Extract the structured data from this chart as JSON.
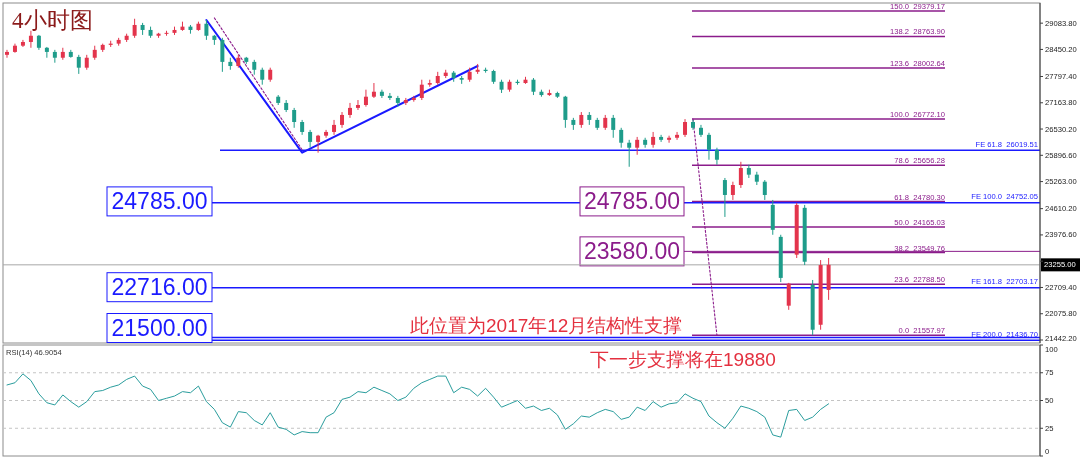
{
  "chart_data": [
    {
      "type": "candlestick",
      "title": "4小时图",
      "categories": [
        null,
        null,
        null,
        null,
        null,
        null,
        null,
        null,
        null,
        null,
        null,
        null,
        null,
        null,
        null,
        null,
        null,
        null,
        null,
        null,
        null,
        null,
        null,
        null,
        null,
        null,
        null,
        null,
        null,
        null,
        null,
        null,
        null,
        null,
        null,
        null,
        null,
        null,
        null,
        null,
        null,
        null,
        null,
        null,
        null,
        null,
        null,
        null,
        null,
        null,
        null,
        null,
        null,
        null,
        null,
        null,
        null,
        null,
        null,
        null,
        null,
        null,
        null,
        null,
        null,
        null,
        null,
        null,
        null,
        null,
        null,
        null,
        null,
        null,
        null,
        null,
        null,
        null,
        null,
        null,
        null,
        null,
        null,
        null,
        null,
        null,
        null,
        null,
        null,
        null,
        null,
        null,
        null,
        null,
        null,
        null,
        null,
        null,
        null,
        null,
        null,
        null,
        null,
        null,
        null,
        null,
        null,
        null,
        null,
        null,
        null,
        null,
        null,
        null,
        null,
        null,
        null,
        null,
        null,
        null,
        null,
        null,
        null,
        null,
        null,
        null,
        null,
        null,
        null,
        null
      ],
      "ohlc": [
        [
          28320,
          28440,
          28250,
          28390
        ],
        [
          28390,
          28590,
          28370,
          28540
        ],
        [
          28540,
          28680,
          28510,
          28630
        ],
        [
          28630,
          28900,
          28490,
          28780
        ],
        [
          28780,
          28800,
          28440,
          28490
        ],
        [
          28490,
          28510,
          28250,
          28390
        ],
        [
          28390,
          28440,
          28130,
          28250
        ],
        [
          28250,
          28490,
          28200,
          28390
        ],
        [
          28390,
          28440,
          28250,
          28270
        ],
        [
          28270,
          28320,
          27860,
          28010
        ],
        [
          28010,
          28320,
          27960,
          28250
        ],
        [
          28250,
          28540,
          28200,
          28440
        ],
        [
          28440,
          28590,
          28390,
          28560
        ],
        [
          28560,
          28660,
          28510,
          28590
        ],
        [
          28590,
          28730,
          28540,
          28680
        ],
        [
          28680,
          28830,
          28630,
          28780
        ],
        [
          28780,
          29190,
          28730,
          29040
        ],
        [
          29040,
          29090,
          28800,
          28920
        ],
        [
          28920,
          29000,
          28730,
          28780
        ],
        [
          28780,
          28850,
          28730,
          28830
        ],
        [
          28830,
          28900,
          28780,
          28850
        ],
        [
          28850,
          29000,
          28800,
          28920
        ],
        [
          28920,
          29120,
          28900,
          29000
        ],
        [
          29000,
          29040,
          28830,
          28920
        ],
        [
          28920,
          29120,
          28900,
          29070
        ],
        [
          29070,
          29160,
          28680,
          28780
        ],
        [
          28780,
          28800,
          28560,
          28680
        ],
        [
          28680,
          28730,
          27910,
          28150
        ],
        [
          28150,
          28250,
          27960,
          28050
        ],
        [
          28050,
          28320,
          28010,
          28250
        ],
        [
          28250,
          28270,
          28100,
          28150
        ],
        [
          28150,
          28200,
          27840,
          27960
        ],
        [
          27960,
          28010,
          27600,
          27720
        ],
        [
          27720,
          28010,
          27670,
          27960
        ],
        [
          27310,
          27350,
          27110,
          27160
        ],
        [
          27160,
          27230,
          26940,
          26990
        ],
        [
          26990,
          27040,
          26560,
          26700
        ],
        [
          26700,
          26750,
          26390,
          26460
        ],
        [
          26460,
          26510,
          26080,
          26220
        ],
        [
          26220,
          26390,
          25960,
          26370
        ],
        [
          26370,
          26510,
          26320,
          26460
        ],
        [
          26460,
          26750,
          26390,
          26630
        ],
        [
          26630,
          26940,
          26560,
          26870
        ],
        [
          26870,
          27160,
          26800,
          27040
        ],
        [
          27040,
          27230,
          26990,
          27110
        ],
        [
          27110,
          27480,
          27070,
          27310
        ],
        [
          27310,
          27640,
          27280,
          27430
        ],
        [
          27430,
          27480,
          27280,
          27330
        ],
        [
          27330,
          27400,
          27230,
          27280
        ],
        [
          27280,
          27330,
          27070,
          27160
        ],
        [
          27160,
          27280,
          27110,
          27230
        ],
        [
          27230,
          27330,
          27190,
          27280
        ],
        [
          27280,
          27720,
          27230,
          27600
        ],
        [
          27600,
          27720,
          27550,
          27640
        ],
        [
          27640,
          27910,
          27600,
          27810
        ],
        [
          27810,
          27960,
          27760,
          27890
        ],
        [
          27890,
          27930,
          27670,
          27760
        ],
        [
          27760,
          27810,
          27620,
          27720
        ],
        [
          27720,
          28010,
          27670,
          27910
        ],
        [
          27910,
          28100,
          27860,
          27960
        ],
        [
          27960,
          28010,
          27890,
          27930
        ],
        [
          27930,
          27960,
          27620,
          27670
        ],
        [
          27670,
          27720,
          27400,
          27480
        ],
        [
          27480,
          27720,
          27430,
          27670
        ],
        [
          27670,
          27720,
          27600,
          27640
        ],
        [
          27640,
          27790,
          27620,
          27720
        ],
        [
          27720,
          27760,
          27350,
          27430
        ],
        [
          27430,
          27480,
          27310,
          27350
        ],
        [
          27350,
          27480,
          27330,
          27400
        ],
        [
          27400,
          27430,
          27280,
          27310
        ],
        [
          27310,
          27330,
          26560,
          26750
        ],
        [
          26750,
          26800,
          26510,
          26630
        ],
        [
          26630,
          26940,
          26560,
          26870
        ],
        [
          26870,
          26940,
          26630,
          26750
        ],
        [
          26750,
          26800,
          26510,
          26560
        ],
        [
          26560,
          26870,
          26510,
          26800
        ],
        [
          26800,
          26870,
          26320,
          26510
        ],
        [
          26510,
          26560,
          26080,
          26200
        ],
        [
          26200,
          26270,
          25620,
          26080
        ],
        [
          26080,
          26340,
          25910,
          26270
        ],
        [
          26270,
          26320,
          26080,
          26150
        ],
        [
          26150,
          26460,
          26080,
          26340
        ],
        [
          26340,
          26390,
          26220,
          26270
        ],
        [
          26270,
          26370,
          26200,
          26320
        ],
        [
          26320,
          26460,
          26270,
          26390
        ],
        [
          26390,
          26770,
          26340,
          26700
        ],
        [
          26700,
          26750,
          26510,
          26560
        ],
        [
          26560,
          26630,
          26340,
          26390
        ],
        [
          26390,
          26440,
          25790,
          26030
        ],
        [
          26030,
          26080,
          25670,
          25790
        ],
        [
          25300,
          25350,
          24410,
          24940
        ],
        [
          24940,
          25260,
          24820,
          25180
        ],
        [
          25180,
          25740,
          25110,
          25590
        ],
        [
          25590,
          25670,
          25350,
          25430
        ],
        [
          25430,
          25500,
          25180,
          25260
        ],
        [
          25260,
          25300,
          24820,
          24940
        ],
        [
          24700,
          24820,
          23980,
          24100
        ],
        [
          23930,
          23980,
          22840,
          22940
        ],
        [
          22270,
          22820,
          22170,
          22800
        ],
        [
          23500,
          24750,
          23420,
          24700
        ],
        [
          24630,
          24700,
          23250,
          23330
        ],
        [
          22770,
          22890,
          21560,
          21690
        ],
        [
          21810,
          23370,
          21690,
          23250
        ],
        [
          22650,
          23420,
          22410,
          23255
        ],
        null,
        null,
        null,
        null,
        null,
        null,
        null,
        null,
        null,
        null,
        null,
        null,
        null,
        null,
        null,
        null,
        null,
        null,
        null,
        null,
        null,
        null,
        null,
        null,
        null,
        null
      ],
      "colors": [
        "#e3344c",
        "#e3344c",
        "#e3344c",
        "#e3344c",
        "#1e9c8a",
        "#1e9c8a",
        "#1e9c8a",
        "#e3344c",
        "#1e9c8a",
        "#1e9c8a",
        "#e3344c",
        "#e3344c",
        "#e3344c",
        "#e3344c",
        "#e3344c",
        "#e3344c",
        "#e3344c",
        "#1e9c8a",
        "#1e9c8a",
        "#e3344c",
        "#e3344c",
        "#e3344c",
        "#e3344c",
        "#1e9c8a",
        "#e3344c",
        "#1e9c8a",
        "#1e9c8a",
        "#1e9c8a",
        "#1e9c8a",
        "#e3344c",
        "#1e9c8a",
        "#1e9c8a",
        "#1e9c8a",
        "#e3344c",
        "#1e9c8a",
        "#1e9c8a",
        "#1e9c8a",
        "#1e9c8a",
        "#1e9c8a",
        "#e3344c",
        "#e3344c",
        "#e3344c",
        "#e3344c",
        "#e3344c",
        "#e3344c",
        "#e3344c",
        "#e3344c",
        "#1e9c8a",
        "#1e9c8a",
        "#1e9c8a",
        "#e3344c",
        "#e3344c",
        "#e3344c",
        "#e3344c",
        "#e3344c",
        "#e3344c",
        "#1e9c8a",
        "#1e9c8a",
        "#e3344c",
        "#e3344c",
        "#1e9c8a",
        "#1e9c8a",
        "#1e9c8a",
        "#e3344c",
        "#1e9c8a",
        "#e3344c",
        "#1e9c8a",
        "#1e9c8a",
        "#e3344c",
        "#1e9c8a",
        "#1e9c8a",
        "#1e9c8a",
        "#e3344c",
        "#1e9c8a",
        "#1e9c8a",
        "#e3344c",
        "#1e9c8a",
        "#1e9c8a",
        "#1e9c8a",
        "#e3344c",
        "#1e9c8a",
        "#e3344c",
        "#1e9c8a",
        "#e3344c",
        "#e3344c",
        "#e3344c",
        "#1e9c8a",
        "#1e9c8a",
        "#1e9c8a",
        "#1e9c8a",
        "#1e9c8a",
        "#e3344c",
        "#e3344c",
        "#1e9c8a",
        "#1e9c8a",
        "#1e9c8a",
        "#1e9c8a",
        "#1e9c8a",
        "#e3344c",
        "#e3344c",
        "#1e9c8a",
        "#1e9c8a",
        "#e3344c",
        "#e3344c",
        null,
        null,
        null,
        null,
        null,
        null,
        null,
        null,
        null,
        null,
        null,
        null,
        null,
        null,
        null,
        null,
        null,
        null,
        null,
        null,
        null,
        null,
        null,
        null,
        null,
        null
      ],
      "ylim": [
        21370,
        29570
      ],
      "yticks": [
        {
          "value": 29083.8,
          "label": "29083.80"
        },
        {
          "value": 28450.2,
          "label": "28450.20"
        },
        {
          "value": 27797.4,
          "label": "27797.40"
        },
        {
          "value": 27163.8,
          "label": "27163.80"
        },
        {
          "value": 26530.2,
          "label": "26530.20"
        },
        {
          "value": 25896.6,
          "label": "25896.60"
        },
        {
          "value": 25263,
          "label": "25263.00"
        },
        {
          "value": 24610.2,
          "label": "24610.20"
        },
        {
          "value": 23976.6,
          "label": "23976.60"
        },
        {
          "value": 23343,
          "label": null
        },
        {
          "value": 22709.4,
          "label": "22709.40"
        },
        {
          "value": 22075.8,
          "label": "22075.80"
        },
        {
          "value": 21442.2,
          "label": "21442.20"
        }
      ],
      "tick_labels": "y",
      "series": [
        {
          "type": "line",
          "color": "#1a1aff",
          "line_style": "solid",
          "values": [
            null,
            null,
            null,
            null,
            null,
            null,
            null,
            null,
            null,
            null,
            null,
            null,
            null,
            null,
            null,
            null,
            null,
            null,
            null,
            null,
            null,
            null,
            null,
            null,
            null,
            29160,
            null,
            null,
            null,
            null,
            null,
            null,
            null,
            null,
            null,
            null,
            null,
            25960,
            null,
            null,
            null,
            null,
            null,
            null,
            null,
            null,
            null,
            null,
            null,
            null,
            null,
            null,
            null,
            null,
            null,
            null,
            null,
            null,
            null,
            28050,
            null,
            null,
            null,
            null,
            null,
            null,
            null,
            null,
            null,
            null,
            null,
            null,
            null,
            null,
            null,
            null,
            null,
            null,
            null,
            null,
            null,
            null,
            null,
            null,
            null,
            null,
            null,
            null,
            null,
            null,
            null,
            null,
            null,
            null,
            null,
            null,
            null,
            null,
            null,
            null,
            null,
            null,
            null,
            null,
            null,
            null,
            null,
            null,
            null,
            null,
            null,
            null,
            null,
            null,
            null,
            null,
            null,
            null,
            null,
            null,
            null,
            null,
            null,
            null,
            null,
            null,
            null,
            null,
            null,
            null
          ]
        },
        {
          "type": "line",
          "color": "#8b1c8b",
          "line_style": "dotted",
          "values": [
            null,
            null,
            null,
            null,
            null,
            null,
            null,
            null,
            null,
            null,
            null,
            null,
            null,
            null,
            null,
            null,
            null,
            null,
            null,
            null,
            null,
            null,
            null,
            null,
            null,
            null,
            29210,
            null,
            null,
            null,
            null,
            null,
            null,
            null,
            null,
            null,
            null,
            26030,
            null,
            null,
            null,
            null,
            null,
            null,
            null,
            null,
            null,
            null,
            null,
            null,
            null,
            null,
            null,
            null,
            null,
            null,
            null,
            null,
            null,
            null,
            null,
            null,
            null,
            null,
            null,
            null,
            null,
            null,
            null,
            null,
            null,
            null,
            null,
            null,
            null,
            null,
            null,
            null,
            null,
            null,
            null,
            null,
            null,
            null,
            null,
            null,
            null,
            null,
            null,
            null,
            null,
            null,
            null,
            null,
            null,
            null,
            null,
            null,
            null,
            null,
            null,
            null,
            null,
            null,
            null,
            null,
            null,
            null,
            null,
            null,
            null,
            null,
            null,
            null,
            null,
            null,
            null,
            null,
            null,
            null,
            null,
            null,
            null,
            null,
            null,
            null,
            null,
            null,
            null,
            null
          ]
        },
        {
          "type": "line",
          "color": "#8b1c8b",
          "line_style": "dotted",
          "values": [
            null,
            null,
            null,
            null,
            null,
            null,
            null,
            null,
            null,
            null,
            null,
            null,
            null,
            null,
            null,
            null,
            null,
            null,
            null,
            null,
            null,
            null,
            null,
            null,
            null,
            null,
            null,
            null,
            null,
            null,
            null,
            null,
            null,
            null,
            null,
            null,
            null,
            null,
            null,
            null,
            null,
            null,
            null,
            null,
            null,
            null,
            null,
            null,
            null,
            null,
            null,
            null,
            null,
            null,
            null,
            null,
            null,
            null,
            null,
            null,
            null,
            null,
            null,
            null,
            null,
            null,
            null,
            null,
            null,
            null,
            null,
            null,
            null,
            null,
            null,
            null,
            null,
            null,
            null,
            null,
            null,
            null,
            null,
            null,
            null,
            null,
            26770,
            null,
            null,
            21560,
            null,
            null,
            null,
            null,
            null,
            null,
            null,
            null,
            null,
            null,
            null,
            null,
            null,
            null,
            null,
            null,
            null,
            null,
            null,
            null,
            null,
            null,
            null,
            null,
            null,
            null,
            null,
            null,
            null,
            null,
            null,
            null,
            null,
            null,
            null,
            null,
            null,
            null,
            null,
            null
          ]
        }
      ],
      "ref_lines": [
        {
          "axis": "y",
          "value": 29379.17,
          "label": "150.0  29379.17",
          "color": "#8b1c8b"
        },
        {
          "axis": "y",
          "value": 28763.9,
          "label": "138.2  28763.90",
          "color": "#8b1c8b"
        },
        {
          "axis": "y",
          "value": 28002.64,
          "label": "123.6  28002.64",
          "color": "#8b1c8b"
        },
        {
          "axis": "y",
          "value": 26772.1,
          "label": "100.0  26772.10",
          "color": "#8b1c8b"
        },
        {
          "axis": "y",
          "value": 25656.28,
          "label": "78.6  25656.28",
          "color": "#8b1c8b"
        },
        {
          "axis": "y",
          "value": 24780.3,
          "label": "61.8  24780.30",
          "color": "#8b1c8b"
        },
        {
          "axis": "y",
          "value": 24165.03,
          "label": "50.0  24165.03",
          "color": "#8b1c8b"
        },
        {
          "axis": "y",
          "value": 23549.76,
          "label": "38.2  23549.76",
          "color": "#8b1c8b"
        },
        {
          "axis": "y",
          "value": 22788.5,
          "label": "23.6  22788.50",
          "color": "#8b1c8b"
        },
        {
          "axis": "y",
          "value": 21557.97,
          "label": "0.0  21557.97",
          "color": "#8b1c8b"
        },
        {
          "axis": "y",
          "value": 26019.51,
          "label": "FE 61.8  26019.51",
          "color": "#1a1aff"
        },
        {
          "axis": "y",
          "value": 24752.05,
          "label": "FE 100.0  24752.05",
          "color": "#1a1aff"
        },
        {
          "axis": "y",
          "value": 22703.17,
          "label": "FE 161.8  22703.17",
          "color": "#1a1aff"
        },
        {
          "axis": "y",
          "value": 21436.7,
          "label": "FE 200.0  21436.70",
          "color": "#1a1aff"
        },
        {
          "axis": "y",
          "value": 21500,
          "label": "21500.00",
          "color": "#1a1aff"
        },
        {
          "axis": "y",
          "value": 23580,
          "label": "23580.00",
          "color": "#8b1c8b"
        },
        {
          "axis": "y",
          "value": 23255,
          "label": "23255.00",
          "color": "#a8a8a8"
        }
      ],
      "annotations": [
        "24785.00",
        "24785.00",
        "22716.00",
        "此位置为2017年12月结构性支撑"
      ]
    },
    {
      "type": "line",
      "title": "RSI(14) 46.9054",
      "categories": [
        null,
        null,
        null,
        null,
        null,
        null,
        null,
        null,
        null,
        null,
        null,
        null,
        null,
        null,
        null,
        null,
        null,
        null,
        null,
        null,
        null,
        null,
        null,
        null,
        null,
        null,
        null,
        null,
        null,
        null,
        null,
        null,
        null,
        null,
        null,
        null,
        null,
        null,
        null,
        null,
        null,
        null,
        null,
        null,
        null,
        null,
        null,
        null,
        null,
        null,
        null,
        null,
        null,
        null,
        null,
        null,
        null,
        null,
        null,
        null,
        null,
        null,
        null,
        null,
        null,
        null,
        null,
        null,
        null,
        null,
        null,
        null,
        null,
        null,
        null,
        null,
        null,
        null,
        null,
        null,
        null,
        null,
        null,
        null,
        null,
        null,
        null,
        null,
        null,
        null,
        null,
        null,
        null,
        null,
        null,
        null,
        null,
        null,
        null,
        null,
        null,
        null,
        null,
        null,
        null,
        null,
        null,
        null,
        null,
        null,
        null,
        null,
        null,
        null,
        null,
        null,
        null,
        null,
        null,
        null,
        null,
        null,
        null,
        null,
        null,
        null,
        null,
        null,
        null,
        null
      ],
      "series": [
        {
          "color": "#2a9d9d",
          "values": [
            64,
            66,
            74,
            68,
            56,
            48,
            46,
            55,
            49,
            44,
            49,
            58,
            59,
            62,
            64,
            69,
            72,
            63,
            60,
            50,
            52,
            54,
            58,
            57,
            63,
            49,
            42,
            30,
            26,
            40,
            39,
            32,
            28,
            39,
            26,
            24,
            19,
            22,
            21,
            21,
            35,
            39,
            51,
            53,
            58,
            57,
            62,
            59,
            56,
            50,
            53,
            61,
            66,
            69,
            72,
            72,
            57,
            62,
            60,
            54,
            61,
            53,
            44,
            47,
            50,
            43,
            45,
            41,
            43,
            37,
            24,
            29,
            36,
            35,
            39,
            42,
            40,
            33,
            35,
            44,
            41,
            49,
            44,
            47,
            48,
            56,
            52,
            49,
            36,
            30,
            25,
            34,
            45,
            43,
            40,
            35,
            19,
            17,
            41,
            42,
            32,
            35,
            42,
            47,
            null,
            null,
            null,
            null,
            null,
            null,
            null,
            null,
            null,
            null,
            null,
            null,
            null,
            null,
            null,
            null,
            null,
            null,
            null,
            null,
            null,
            null,
            null,
            null,
            null,
            null
          ]
        }
      ],
      "ylim": [
        0,
        100
      ],
      "yticks": [
        100,
        75,
        50,
        25,
        0
      ],
      "grid": "y",
      "tick_labels": "y",
      "annotations": [
        "下一步支撑将在19880"
      ]
    }
  ]
}
